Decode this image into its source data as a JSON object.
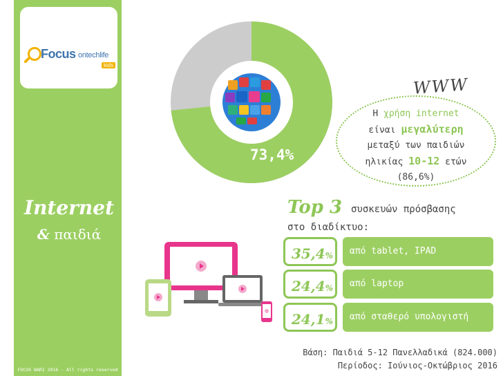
{
  "brand": {
    "focus": "Focus",
    "ontechlife": "ontechlife",
    "kids": "kids"
  },
  "sidebar": {
    "title": "Internet",
    "subtitle_amp": "&",
    "subtitle_word": "παιδιά",
    "copyright": "FOCUS BARI 2016 - All rights reserved"
  },
  "donut": {
    "value_label": "73,4%",
    "fraction": 0.734,
    "colors": {
      "main": "#9ccf62",
      "rest": "#cccccc"
    }
  },
  "callout": {
    "www": "WWW",
    "line1_a": "Η ",
    "line1_b": "χρήση internet",
    "line2_a": "είναι ",
    "line2_b": "μεγαλύτερη",
    "line3": "μεταξύ των παιδιών",
    "line4_a": "ηλικίας ",
    "line4_b": "10-12",
    "line4_c": " ετών",
    "line5": "(86,6%)"
  },
  "top3": {
    "title": "Top 3",
    "rest_line1": "συσκευών πρόσβασης",
    "rest_line2": "στο διαδίκτυο:",
    "rows": [
      {
        "pct_num": "35,4",
        "pct_sign": "%",
        "label": "από tablet, IPAD"
      },
      {
        "pct_num": "24,4",
        "pct_sign": "%",
        "label": "από laptop"
      },
      {
        "pct_num": "24,1",
        "pct_sign": "%",
        "label": "από σταθερό υπολογιστή"
      }
    ]
  },
  "footer": {
    "base": "Βάση: Παιδιά 5-12 Πανελλαδικά (824.000)",
    "period": "Περίοδος: Ιούνιος-Οκτώβριος 2016"
  },
  "colors": {
    "accent_green": "#9ccf62",
    "pink": "#e8358c",
    "gray": "#cccccc",
    "text": "#444444"
  },
  "icons": [
    "magnifier-icon",
    "globe-apps-icon",
    "desktop-icon",
    "tablet-icon",
    "laptop-icon",
    "phone-icon"
  ]
}
